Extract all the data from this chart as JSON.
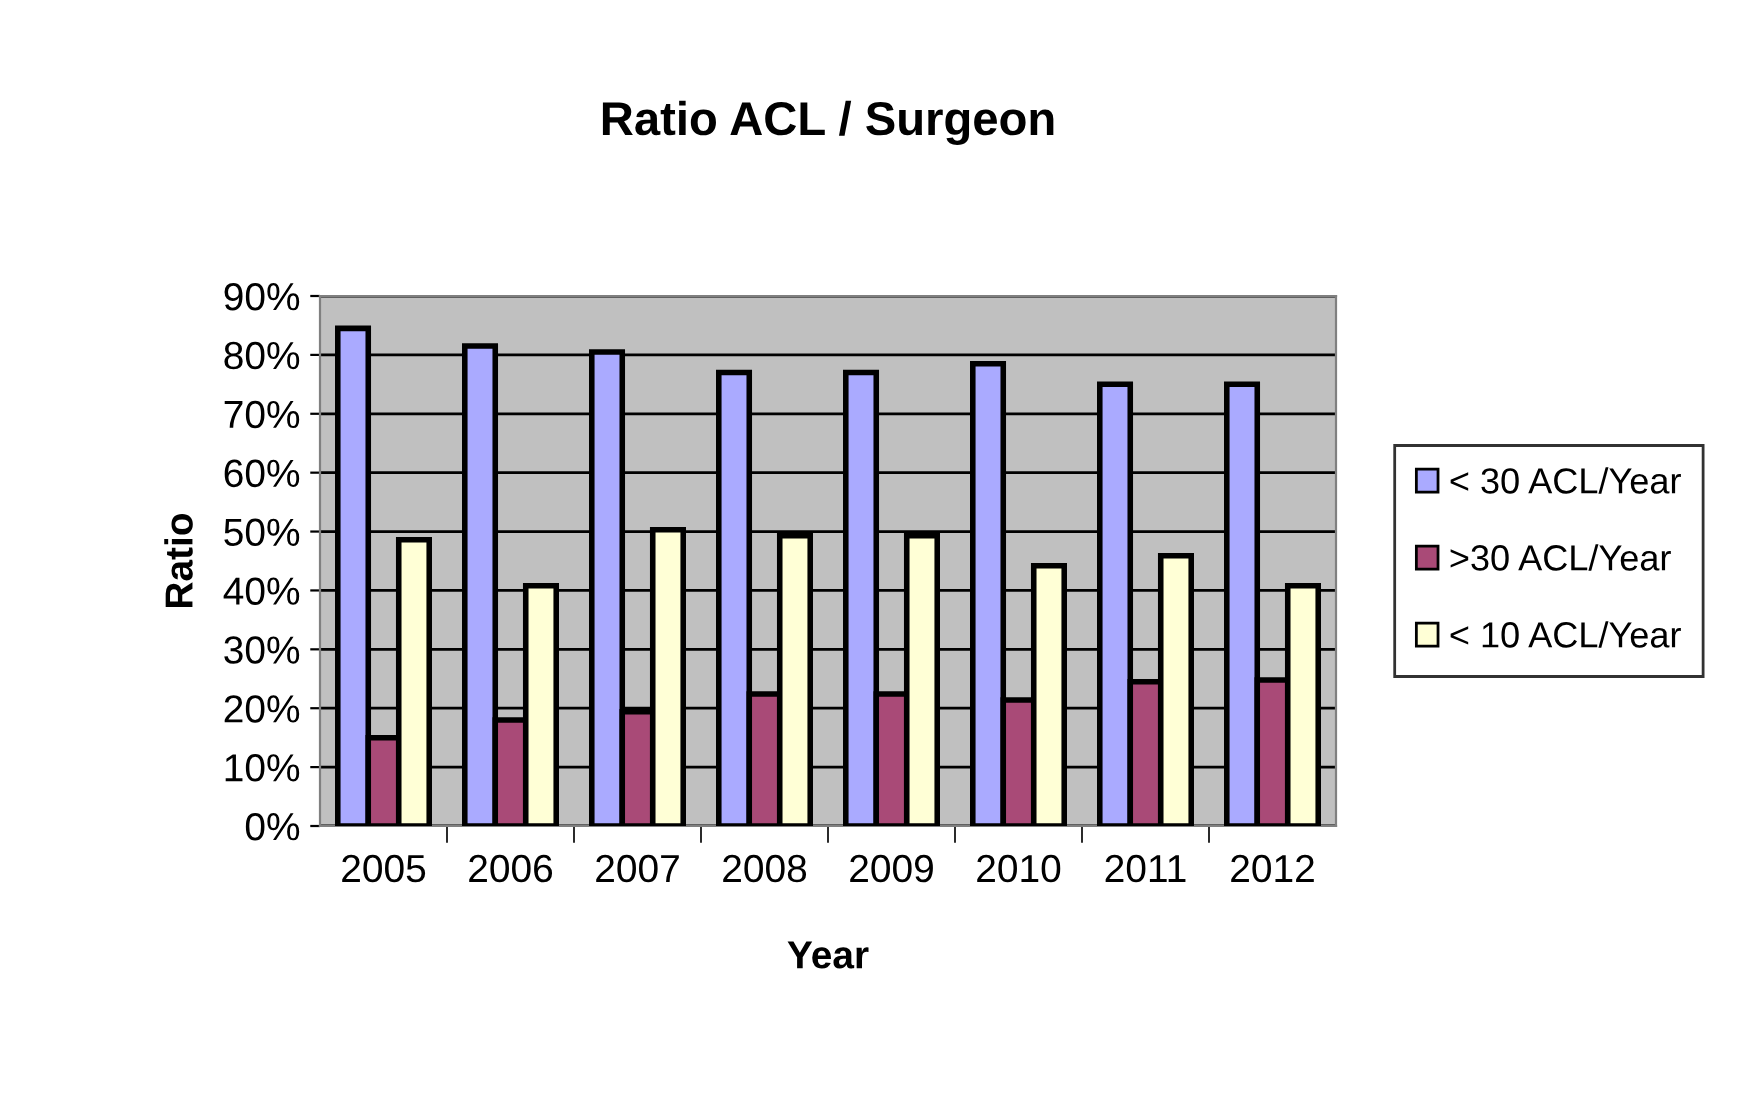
{
  "chart_data": {
    "type": "bar",
    "title": "Ratio ACL / Surgeon",
    "xlabel": "Year",
    "ylabel": "Ratio",
    "categories": [
      "2005",
      "2006",
      "2007",
      "2008",
      "2009",
      "2010",
      "2011",
      "2012"
    ],
    "series": [
      {
        "name": "< 30 ACL/Year",
        "color": "#aaaaff",
        "values": [
          84.5,
          81.5,
          80.5,
          77,
          77,
          78.5,
          75,
          75
        ]
      },
      {
        "name": ">30 ACL/Year",
        "color": "#a94a77",
        "values": [
          15,
          18,
          19.4,
          22.4,
          22.4,
          21.4,
          24.5,
          24.8
        ]
      },
      {
        "name": "< 10 ACL/Year",
        "color": "#ffffd6",
        "values": [
          48.6,
          40.8,
          50.3,
          49.3,
          49.3,
          44.2,
          45.9,
          40.8
        ]
      }
    ],
    "ylim": [
      0,
      90
    ],
    "yticks": [
      {
        "value": 0,
        "label": "0%"
      },
      {
        "value": 10,
        "label": "10%"
      },
      {
        "value": 20,
        "label": "20%"
      },
      {
        "value": 30,
        "label": "30%"
      },
      {
        "value": 40,
        "label": "40%"
      },
      {
        "value": 50,
        "label": "50%"
      },
      {
        "value": 60,
        "label": "60%"
      },
      {
        "value": 70,
        "label": "70%"
      },
      {
        "value": 80,
        "label": "80%"
      },
      {
        "value": 90,
        "label": "90%"
      }
    ],
    "grid": "y",
    "legend": "right"
  }
}
